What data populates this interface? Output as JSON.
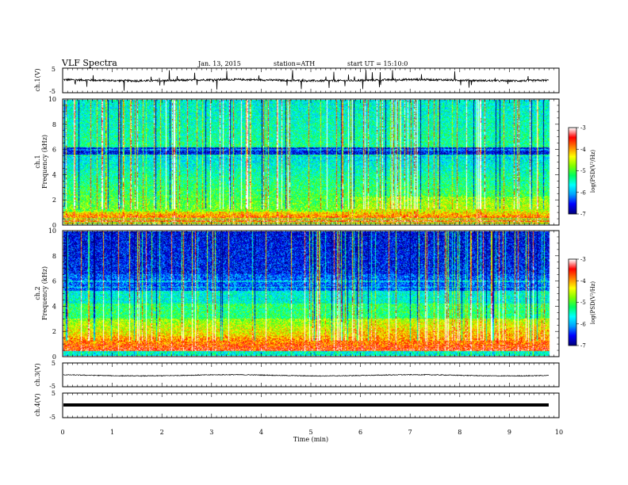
{
  "header": {
    "title": "VLF Spectra",
    "date": "Jan. 13, 2015",
    "station": "station=ATH",
    "start": "start  UT  =   15:10:0"
  },
  "chart_data": [
    {
      "panel": "ch1-waveform",
      "type": "line",
      "ylabel": "ch.1(V)",
      "yticks": [
        "5",
        "-5"
      ],
      "ylim": [
        -5,
        5
      ],
      "baseline": 0.1,
      "trace_color": "#000000"
    },
    {
      "panel": "ch1-spectrogram",
      "type": "heatmap",
      "ylabel": [
        "ch.1",
        "Frequency (kHz)"
      ],
      "ylim": [
        0,
        10
      ],
      "yticks": [
        "0",
        "2",
        "4",
        "6",
        "8",
        "10"
      ],
      "colorbar": {
        "label": "log(PSD(V²/Hz)",
        "ticks": [
          "-3",
          "-4",
          "-5",
          "-6",
          "-7"
        ],
        "range": [
          -7,
          -3
        ],
        "colors": [
          "#000080",
          "#0000ff",
          "#00a0ff",
          "#00ffff",
          "#00ff60",
          "#80ff00",
          "#ffff00",
          "#ff8000",
          "#ff0000",
          "#ffffff"
        ]
      }
    },
    {
      "panel": "ch2-spectrogram",
      "type": "heatmap",
      "ylabel": [
        "ch.2",
        "Frequency (kHz)"
      ],
      "ylim": [
        0,
        10
      ],
      "yticks": [
        "0",
        "2",
        "4",
        "6",
        "8",
        "10"
      ],
      "colorbar": {
        "label": "log(PSD(V²/Hz)",
        "ticks": [
          "-3",
          "-4",
          "-5",
          "-6",
          "-7"
        ],
        "range": [
          -7,
          -3
        ]
      }
    },
    {
      "panel": "ch3-waveform",
      "type": "line",
      "ylabel": "ch.3(V)",
      "yticks": [
        "5",
        "-5"
      ],
      "ylim": [
        -5,
        5
      ],
      "baseline": -0.2
    },
    {
      "panel": "ch4-waveform",
      "type": "line",
      "ylabel": "ch.4(V)",
      "yticks": [
        "5",
        "-5"
      ],
      "ylim": [
        -5,
        5
      ],
      "baseline": 0.0
    },
    {
      "panel": "time-axis",
      "xlabel": "Time (min)",
      "xlim": [
        0,
        10
      ],
      "xticks": [
        "0",
        "1",
        "2",
        "3",
        "4",
        "5",
        "6",
        "7",
        "8",
        "9",
        "10"
      ],
      "data_end": 9.8
    }
  ]
}
